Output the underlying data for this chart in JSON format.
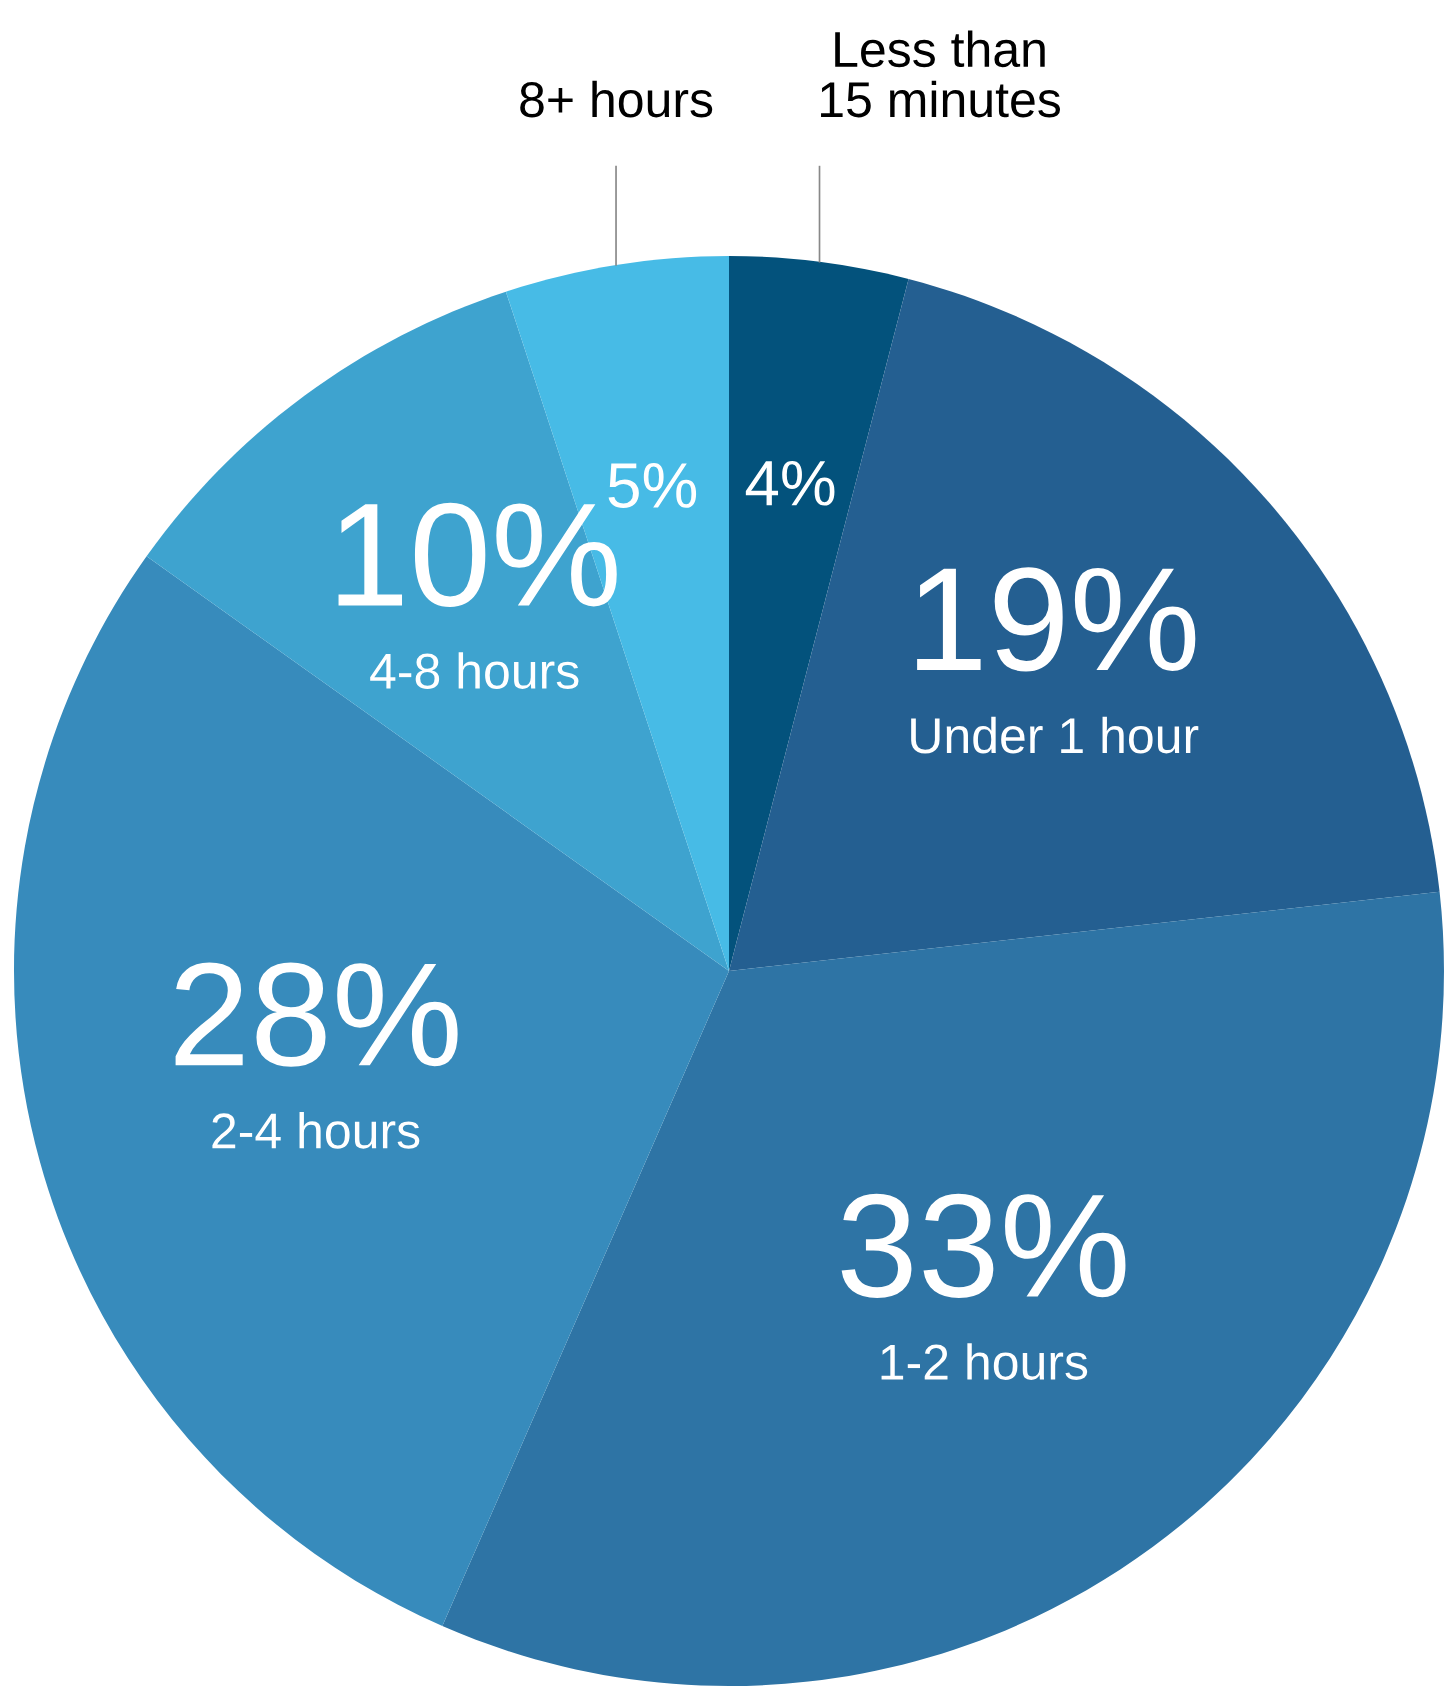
{
  "chart_data": {
    "type": "pie",
    "categories": [
      "Less than\n15 minutes",
      "Under 1 hour",
      "1-2 hours",
      "2-4 hours",
      "4-8 hours",
      "8+ hours"
    ],
    "values": [
      4,
      19,
      33,
      28,
      10,
      5
    ],
    "value_labels": [
      "4%",
      "19%",
      "33%",
      "28%",
      "10%",
      "5%"
    ],
    "colors": [
      "#03527c",
      "#245f91",
      "#2e74a5",
      "#378bbc",
      "#3ea3cf",
      "#47bbe6"
    ]
  }
}
